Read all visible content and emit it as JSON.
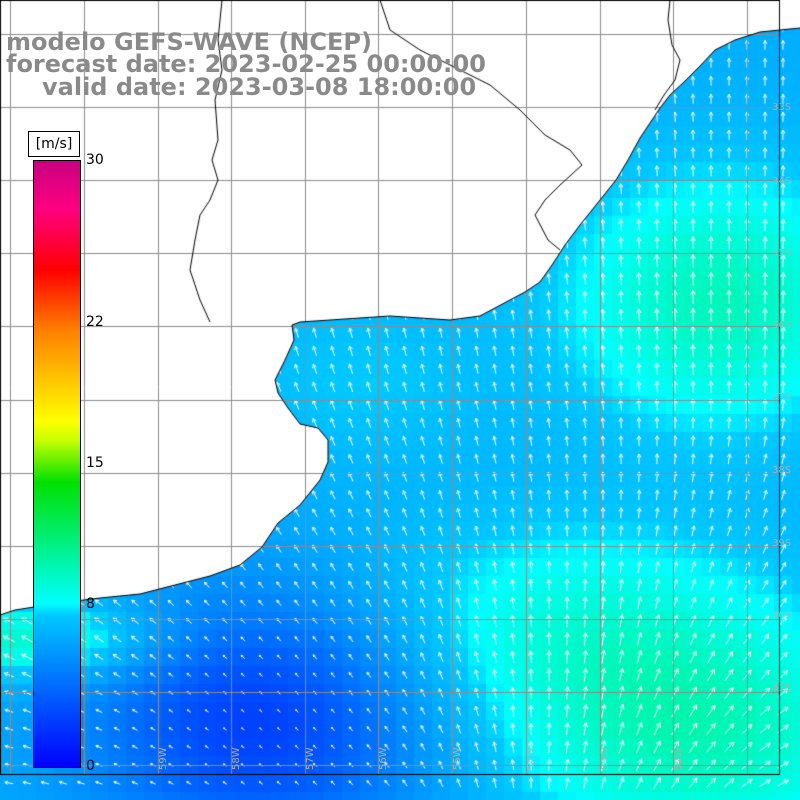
{
  "title": {
    "line1": "modelo GEFS-WAVE (NCEP)",
    "line2": "forecast date: 2023-02-25 00:00:00",
    "line3": "valid date: 2023-03-08 18:00:00"
  },
  "colorbar": {
    "unit": "[m/s]",
    "min": 0,
    "max": 30,
    "ticks": [
      "30",
      "22",
      "15",
      "8",
      "0"
    ],
    "tick_values": [
      30,
      22,
      15,
      8,
      0
    ],
    "colors": [
      "#0000ff",
      "#00c8ff",
      "#00ffff",
      "#00e000",
      "#c8ff00",
      "#ffff00",
      "#ff8000",
      "#ff0000",
      "#ff0080",
      "#c80080"
    ]
  },
  "grid": {
    "lat_labels": [
      "33S",
      "34S",
      "35S",
      "36S",
      "37S",
      "38S",
      "39S",
      "40S",
      "41S"
    ],
    "lon_labels": [
      "59W",
      "58W",
      "57W",
      "56W",
      "55W",
      "54W",
      "53W",
      "52W"
    ]
  },
  "colors": {
    "land": "#ffffff",
    "coastline": "#000000",
    "gridline": "#8c8c8c",
    "arrow": "#ffffff",
    "title": "#8a8a8a"
  }
}
